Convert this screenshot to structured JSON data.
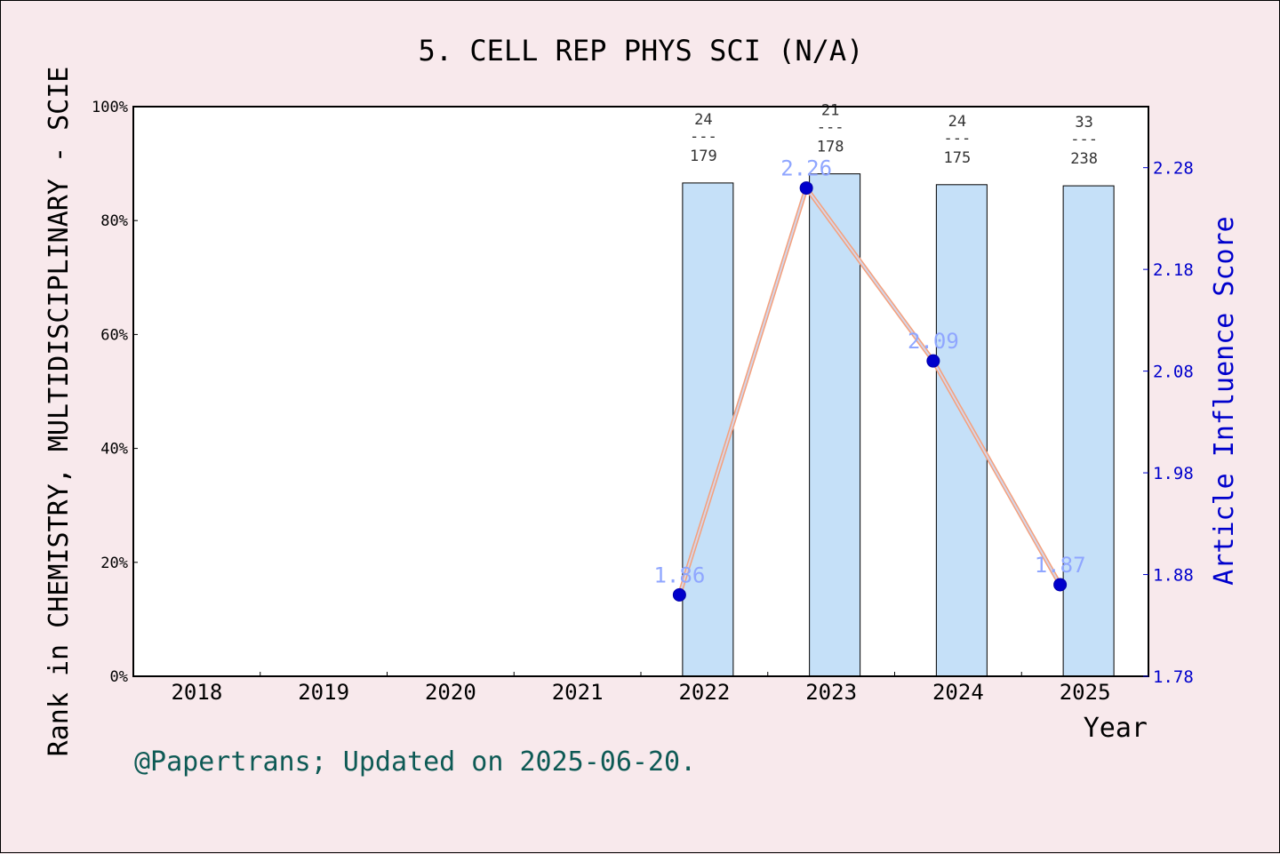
{
  "chart_data": {
    "type": "bar",
    "title": "5. CELL REP PHYS SCI (N/A)",
    "xlabel": "Year",
    "ylabel_left": "Rank in CHEMISTRY, MULTIDISCIPLINARY - SCIE",
    "ylabel_right": "Article Influence Score",
    "categories": [
      "2018",
      "2019",
      "2020",
      "2021",
      "2022",
      "2023",
      "2024",
      "2025"
    ],
    "ylim_left": [
      0,
      100
    ],
    "yticks_left": [
      "0%",
      "20%",
      "40%",
      "60%",
      "80%",
      "100%"
    ],
    "ylim_right": [
      1.78,
      2.34
    ],
    "yticks_right": [
      "1.78",
      "1.88",
      "1.98",
      "2.08",
      "2.18",
      "2.28"
    ],
    "bars": [
      {
        "year": "2022",
        "percent": 86.6,
        "rank": "24",
        "total": "179",
        "frac_sep": "---"
      },
      {
        "year": "2023",
        "percent": 88.2,
        "rank": "21",
        "total": "178",
        "frac_sep": "---"
      },
      {
        "year": "2024",
        "percent": 86.3,
        "rank": "24",
        "total": "175",
        "frac_sep": "---"
      },
      {
        "year": "2025",
        "percent": 86.1,
        "rank": "33",
        "total": "238",
        "frac_sep": "---"
      }
    ],
    "line_series": [
      {
        "year": "2022",
        "value": 1.86,
        "label": "1.86"
      },
      {
        "year": "2023",
        "value": 2.26,
        "label": "2.26"
      },
      {
        "year": "2024",
        "value": 2.09,
        "label": "2.09"
      },
      {
        "year": "2025",
        "value": 1.87,
        "label": "1.87"
      }
    ],
    "colors": {
      "bar_fill": "#c5e0f8",
      "line": "#f4a07c",
      "line_inner": "#d5d5e8",
      "marker": "#0000cc",
      "right_axis": "#0000cc",
      "label_light": "#8fa6ff",
      "footer": "#0e5a55"
    },
    "grid": false
  },
  "footer": "@Papertrans; Updated on 2025-06-20."
}
